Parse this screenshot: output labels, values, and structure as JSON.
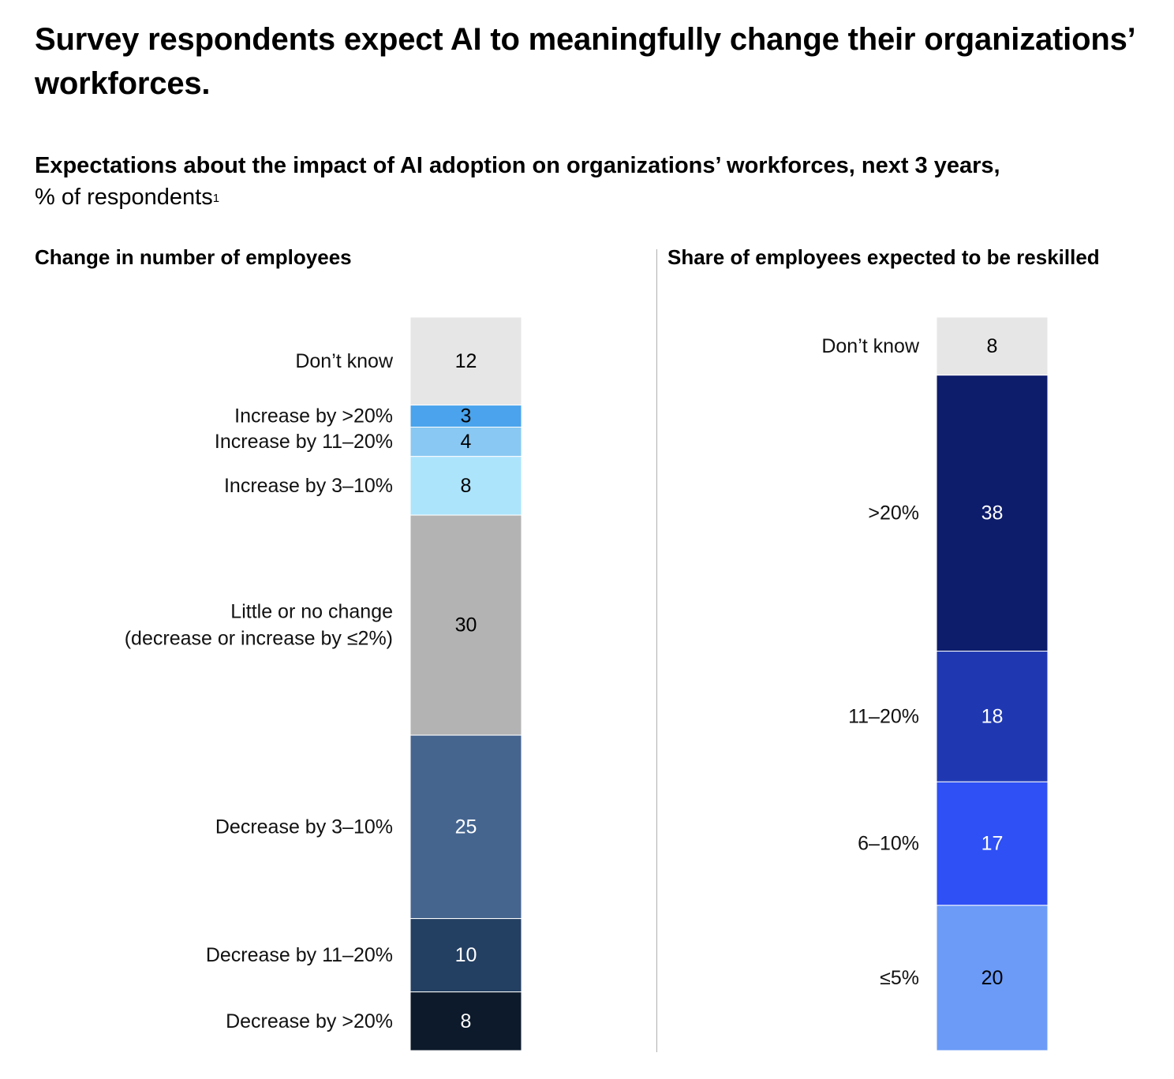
{
  "header": {
    "title": "Survey respondents expect AI to meaningfully change their organizations’ workforces.",
    "subtitle": "Expectations about the impact of AI adoption on organizations’ workforces, next 3 years,",
    "unit": "% of respondents",
    "footnote_marker": "1"
  },
  "chart_data": [
    {
      "type": "bar",
      "stacked": true,
      "orientation": "vertical",
      "title": "Change in number of employees",
      "total": 100,
      "segments": [
        {
          "label": "Don’t know",
          "value": 12,
          "color": "#e6e6e6",
          "text_color": "#000000"
        },
        {
          "label": "Increase by >20%",
          "value": 3,
          "color": "#4aa3ec",
          "text_color": "#000000"
        },
        {
          "label": "Increase by 11–20%",
          "value": 4,
          "color": "#89c8f2",
          "text_color": "#000000"
        },
        {
          "label": "Increase by 3–10%",
          "value": 8,
          "color": "#ace4fc",
          "text_color": "#000000"
        },
        {
          "label": "Little or no change\n(decrease or increase by ≤2%)",
          "value": 30,
          "color": "#b3b3b3",
          "text_color": "#000000"
        },
        {
          "label": "Decrease by 3–10%",
          "value": 25,
          "color": "#45658f",
          "text_color": "#ffffff"
        },
        {
          "label": "Decrease by 11–20%",
          "value": 10,
          "color": "#233f62",
          "text_color": "#ffffff"
        },
        {
          "label": "Decrease by >20%",
          "value": 8,
          "color": "#0c1a2b",
          "text_color": "#ffffff"
        }
      ]
    },
    {
      "type": "bar",
      "stacked": true,
      "orientation": "vertical",
      "title": "Share of employees expected to be reskilled",
      "total": 101,
      "segments": [
        {
          "label": "Don’t know",
          "value": 8,
          "color": "#e6e6e6",
          "text_color": "#000000"
        },
        {
          "label": ">20%",
          "value": 38,
          "color": "#0d1c6b",
          "text_color": "#ffffff"
        },
        {
          "label": "11–20%",
          "value": 18,
          "color": "#1f38b2",
          "text_color": "#ffffff"
        },
        {
          "label": "6–10%",
          "value": 17,
          "color": "#2e50f5",
          "text_color": "#ffffff"
        },
        {
          "label": "≤5%",
          "value": 20,
          "color": "#6b9bf7",
          "text_color": "#000000"
        }
      ]
    }
  ]
}
